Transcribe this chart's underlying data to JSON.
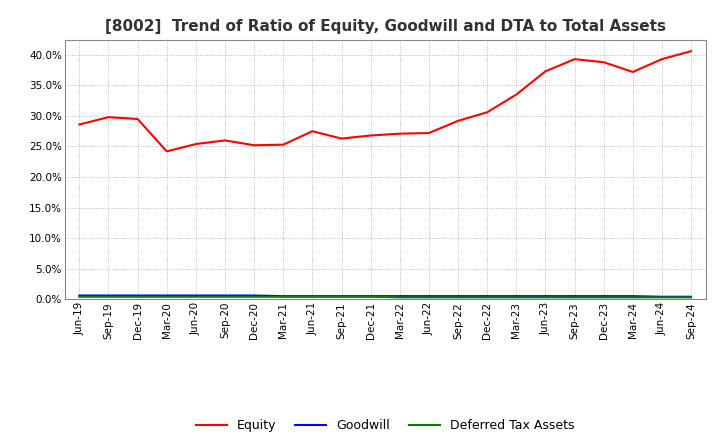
{
  "title": "[8002]  Trend of Ratio of Equity, Goodwill and DTA to Total Assets",
  "x_labels": [
    "Jun-19",
    "Sep-19",
    "Dec-19",
    "Mar-20",
    "Jun-20",
    "Sep-20",
    "Dec-20",
    "Mar-21",
    "Jun-21",
    "Sep-21",
    "Dec-21",
    "Mar-22",
    "Jun-22",
    "Sep-22",
    "Dec-22",
    "Mar-23",
    "Jun-23",
    "Sep-23",
    "Dec-23",
    "Mar-24",
    "Jun-24",
    "Sep-24"
  ],
  "equity": [
    0.286,
    0.298,
    0.295,
    0.242,
    0.254,
    0.26,
    0.252,
    0.253,
    0.275,
    0.263,
    0.268,
    0.271,
    0.272,
    0.292,
    0.306,
    0.335,
    0.373,
    0.393,
    0.388,
    0.372,
    0.393,
    0.406
  ],
  "goodwill": [
    0.006,
    0.006,
    0.006,
    0.006,
    0.006,
    0.006,
    0.006,
    0.005,
    0.005,
    0.005,
    0.005,
    0.005,
    0.005,
    0.005,
    0.005,
    0.005,
    0.005,
    0.005,
    0.005,
    0.005,
    0.004,
    0.004
  ],
  "dta": [
    0.004,
    0.004,
    0.004,
    0.004,
    0.004,
    0.004,
    0.004,
    0.004,
    0.004,
    0.004,
    0.004,
    0.003,
    0.003,
    0.003,
    0.003,
    0.003,
    0.003,
    0.003,
    0.003,
    0.003,
    0.003,
    0.003
  ],
  "equity_color": "#ff0000",
  "goodwill_color": "#0000ff",
  "dta_color": "#008000",
  "ylim": [
    0.0,
    0.425
  ],
  "yticks": [
    0.0,
    0.05,
    0.1,
    0.15,
    0.2,
    0.25,
    0.3,
    0.35,
    0.4
  ],
  "background_color": "#ffffff",
  "grid_color": "#aaaaaa",
  "title_fontsize": 11,
  "tick_fontsize": 7.5,
  "legend_labels": [
    "Equity",
    "Goodwill",
    "Deferred Tax Assets"
  ],
  "legend_fontsize": 9
}
